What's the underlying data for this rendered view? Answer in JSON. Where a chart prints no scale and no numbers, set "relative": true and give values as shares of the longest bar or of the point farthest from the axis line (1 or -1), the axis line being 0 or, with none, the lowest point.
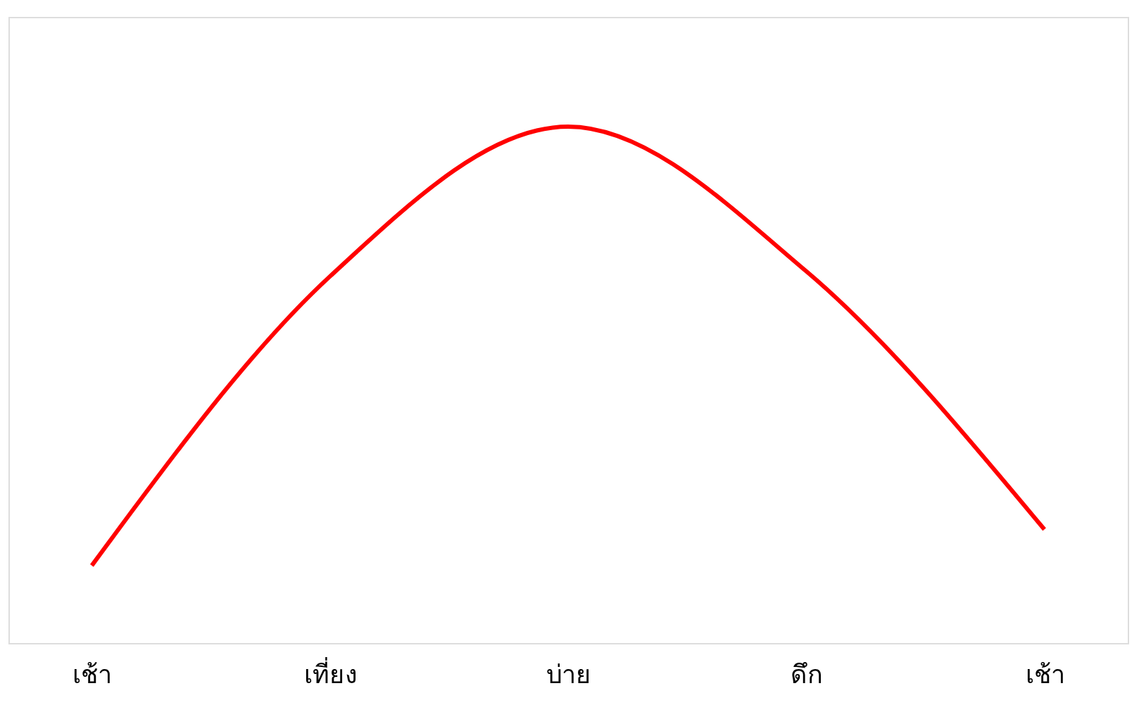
{
  "chart_data": {
    "type": "line",
    "relative": true,
    "categories": [
      "เช้า",
      "เที่ยง",
      "บ่าย",
      "ดึก",
      "เช้า"
    ],
    "series": [
      {
        "color": "#ff0000",
        "values": [
          0.15,
          0.71,
          1.0,
          0.72,
          0.22
        ]
      }
    ]
  }
}
